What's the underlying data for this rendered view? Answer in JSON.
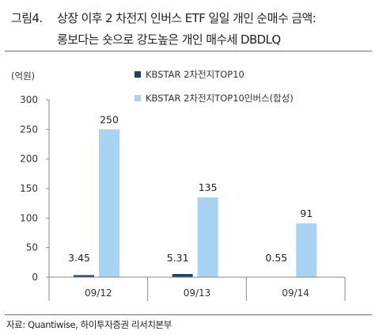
{
  "figure": {
    "number": "그림4.",
    "title_line1": "상장 이후 2 차전지 인버스 ETF 일일 개인 순매수 금액:",
    "title_line2": "롱보다는 숏으로 강도높은 개인 매수세 DBDLQ",
    "source": "자료: Quantiwise, 하이투자증권 리서치본부"
  },
  "chart_data": {
    "type": "bar",
    "title": "",
    "unit_label": "(억원)",
    "categories": [
      "09/12",
      "09/13",
      "09/14"
    ],
    "series": [
      {
        "name": "KBSTAR 2차전지TOP10",
        "values": [
          3.45,
          5.31,
          0.55
        ],
        "color": "#1f3f6e"
      },
      {
        "name": "KBSTAR 2차전지TOP10인버스(합성)",
        "values": [
          250,
          135,
          91
        ],
        "color": "#a9d3f3"
      }
    ],
    "data_labels": [
      [
        "3.45",
        "5.31",
        "0.55"
      ],
      [
        "250",
        "135",
        "91"
      ]
    ],
    "yticks": [
      0,
      50,
      100,
      150,
      200,
      250,
      300
    ],
    "ylim": [
      0,
      300
    ],
    "grid": false,
    "legend_position": "top-right"
  }
}
